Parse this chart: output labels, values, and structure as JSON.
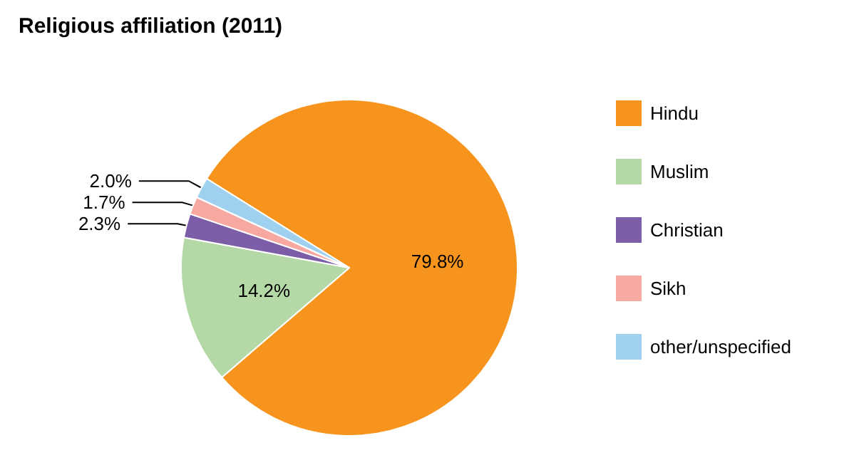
{
  "chart_data": {
    "type": "pie",
    "title": "Religious affiliation (2011)",
    "categories": [
      "Hindu",
      "Muslim",
      "Christian",
      "Sikh",
      "other/unspecified"
    ],
    "values": [
      79.8,
      14.2,
      2.3,
      1.7,
      2.0
    ],
    "colors": [
      "#f7941d",
      "#b5d9a6",
      "#7b5ea7",
      "#f7a8a0",
      "#9fd0ef"
    ],
    "value_labels": [
      "79.8%",
      "14.2%",
      "2.3%",
      "1.7%",
      "2.0%"
    ],
    "legend": "right"
  }
}
